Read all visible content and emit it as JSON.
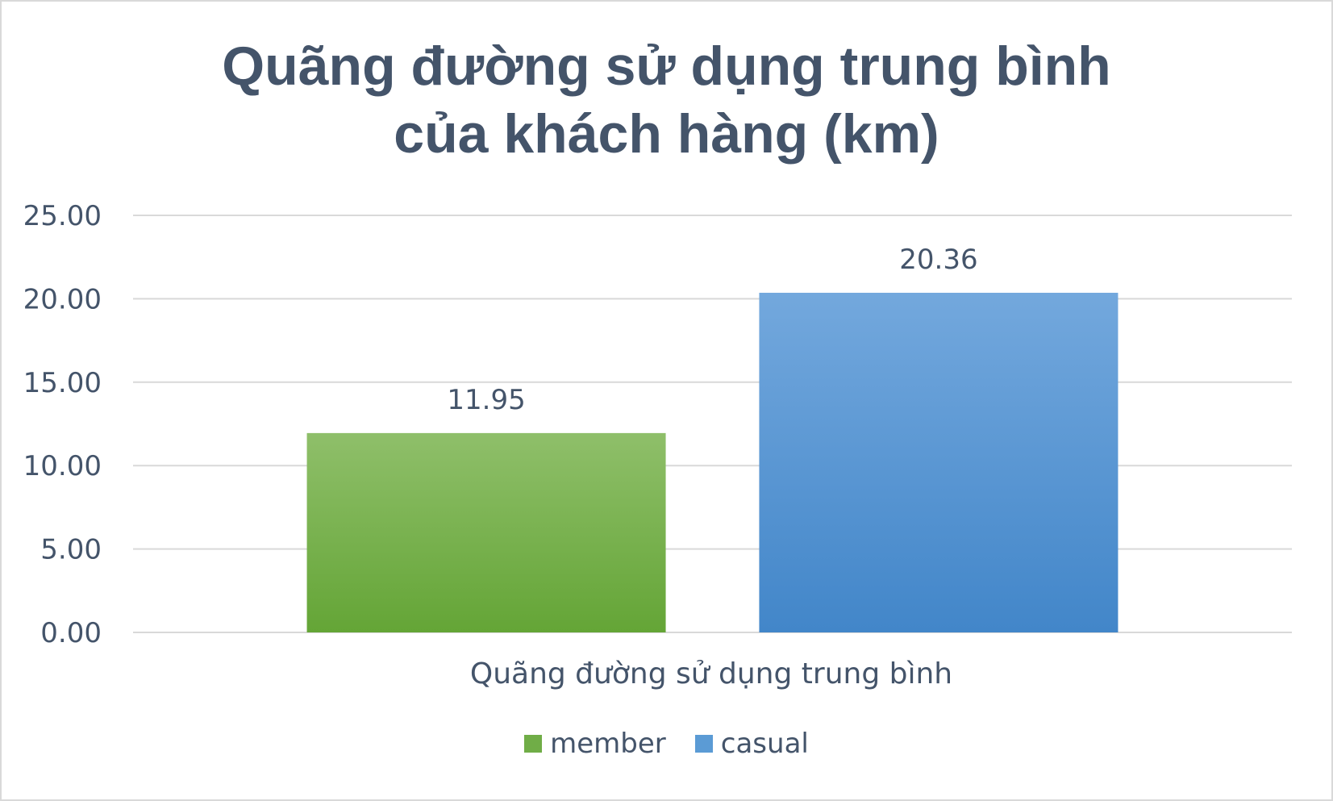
{
  "chart_data": {
    "type": "bar",
    "title_lines": [
      "Quãng đường sử dụng trung bình",
      "của khách hàng (km)"
    ],
    "categories": [
      "Quãng đường sử dụng trung bình"
    ],
    "series": [
      {
        "name": "member",
        "values": [
          11.95
        ],
        "value_labels": [
          "11.95"
        ],
        "color": "#70ad47"
      },
      {
        "name": "casual",
        "values": [
          20.36
        ],
        "value_labels": [
          "20.36"
        ],
        "color": "#5b9bd5"
      }
    ],
    "ylim": [
      0,
      25
    ],
    "y_ticks": [
      0,
      5,
      10,
      15,
      20,
      25
    ],
    "y_tick_labels": [
      "0.00",
      "5.00",
      "10.00",
      "15.00",
      "20.00",
      "25.00"
    ],
    "xlabel": "",
    "ylabel": "",
    "grid": true,
    "legend_position": "bottom"
  },
  "colors": {
    "text": "#44546a",
    "gridline": "#d9d9d9"
  }
}
